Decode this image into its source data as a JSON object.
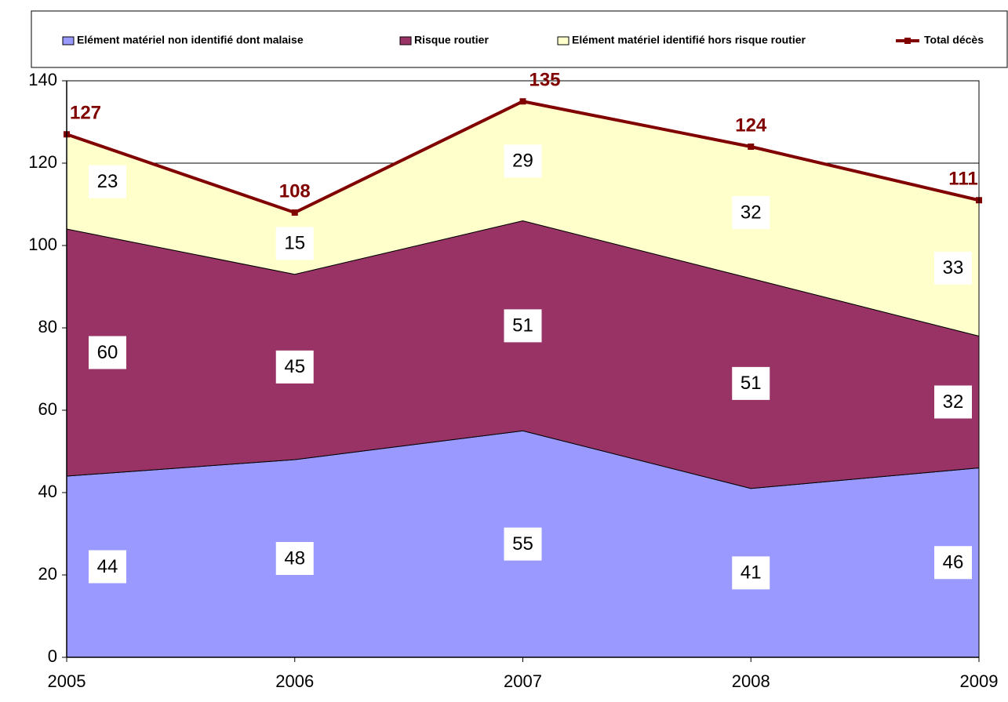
{
  "chart_data": {
    "type": "area",
    "stacked": true,
    "x": [
      2005,
      2006,
      2007,
      2008,
      2009
    ],
    "xlim": [
      2005,
      2009
    ],
    "xticks": [
      2005,
      2006,
      2007,
      2008,
      2009
    ],
    "ylim": [
      0,
      140
    ],
    "yticks": [
      0,
      20,
      40,
      60,
      80,
      100,
      120,
      140
    ],
    "grid": true,
    "legend": "top",
    "series": [
      {
        "name": "Elément matériel non identifié dont malaise",
        "color": "#9999ff",
        "values": [
          44,
          48,
          55,
          41,
          46
        ]
      },
      {
        "name": "Risque routier",
        "color": "#993366",
        "values": [
          60,
          45,
          51,
          51,
          32
        ]
      },
      {
        "name": "Elément matériel identifié hors risque routier",
        "color": "#ffffcc",
        "values": [
          23,
          15,
          29,
          32,
          33
        ]
      },
      {
        "name": "Total décès",
        "type": "line",
        "color": "#800000",
        "values": [
          127,
          108,
          135,
          124,
          111
        ]
      }
    ]
  }
}
